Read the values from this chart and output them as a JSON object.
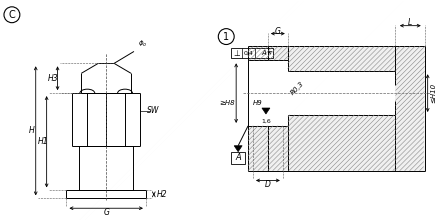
{
  "bg_color": "#ffffff",
  "line_color": "#000000",
  "hatch_color": "#555555",
  "label_C": "C",
  "label_1": "1",
  "labels_left": {
    "H3": "H3",
    "H": "H",
    "H1": "H1",
    "H2": "H2",
    "G": "G",
    "SW": "SW"
  },
  "labels_right": {
    "L": "L",
    "G": "G",
    "H8": "≥H8",
    "H9": "H9",
    "R03": "R0,3",
    "H10": "≤H10",
    "D": "D",
    "tol": "⊥|0,4|A",
    "A": "A",
    "16": "1,6"
  }
}
